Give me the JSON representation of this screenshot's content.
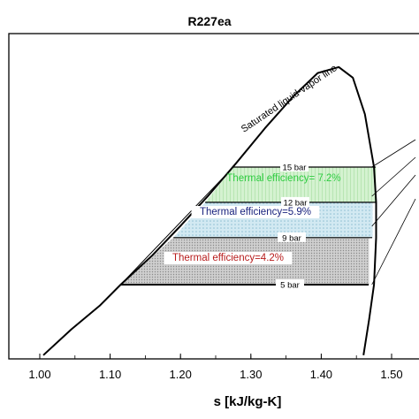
{
  "chart_data": {
    "type": "line",
    "title": "R227ea",
    "xlabel": "s [kJ/kg-K]",
    "ylabel": "",
    "xlim": [
      0.93,
      1.54
    ],
    "x_ticks": [
      "1.00",
      "1.10",
      "1.20",
      "1.30",
      "1.40",
      "1.50"
    ],
    "saturation_curve": {
      "label": "Saturated liquid-vapor line",
      "points": [
        [
          1.005,
          -1.0
        ],
        [
          1.045,
          1.2
        ],
        [
          1.085,
          3.2
        ],
        [
          1.115,
          5.0
        ],
        [
          1.16,
          7.5
        ],
        [
          1.2,
          10.0
        ],
        [
          1.24,
          12.6
        ],
        [
          1.28,
          15.4
        ],
        [
          1.32,
          18.3
        ],
        [
          1.36,
          21.0
        ],
        [
          1.395,
          23.0
        ],
        [
          1.425,
          23.5
        ],
        [
          1.445,
          22.6
        ],
        [
          1.462,
          19.5
        ],
        [
          1.475,
          15.0
        ],
        [
          1.478,
          12.0
        ],
        [
          1.478,
          9.0
        ],
        [
          1.475,
          5.0
        ],
        [
          1.468,
          2.0
        ],
        [
          1.46,
          -1.0
        ]
      ]
    },
    "pressure_lines": [
      {
        "label": "15 bar",
        "value": 15,
        "x_start": 1.275,
        "x_end": 1.49
      },
      {
        "label": "12 bar",
        "value": 12,
        "x_start": 1.235,
        "x_end": 1.49
      },
      {
        "label": "9 bar",
        "value": 9,
        "x_start": 1.19,
        "x_end": 1.485
      },
      {
        "label": "5 bar",
        "value": 5,
        "x_start": 1.115,
        "x_end": 1.48
      }
    ],
    "cycle_regions": [
      {
        "label": "Thermal efficiency= 7.2%",
        "p_high": 15,
        "p_low": 12,
        "fill": "#c7f0c4",
        "color": "#2ecc40"
      },
      {
        "label": "Thermal efficiency=5.9%",
        "p_high": 12,
        "p_low": 9,
        "fill": "#c4e2ee",
        "color": "#1a237e"
      },
      {
        "label": "Thermal efficiency=4.2%",
        "p_high": 9,
        "p_low": 5,
        "fill": "#c4c4c4",
        "color": "#b71c1c"
      }
    ],
    "grid": false,
    "legend": "none"
  }
}
